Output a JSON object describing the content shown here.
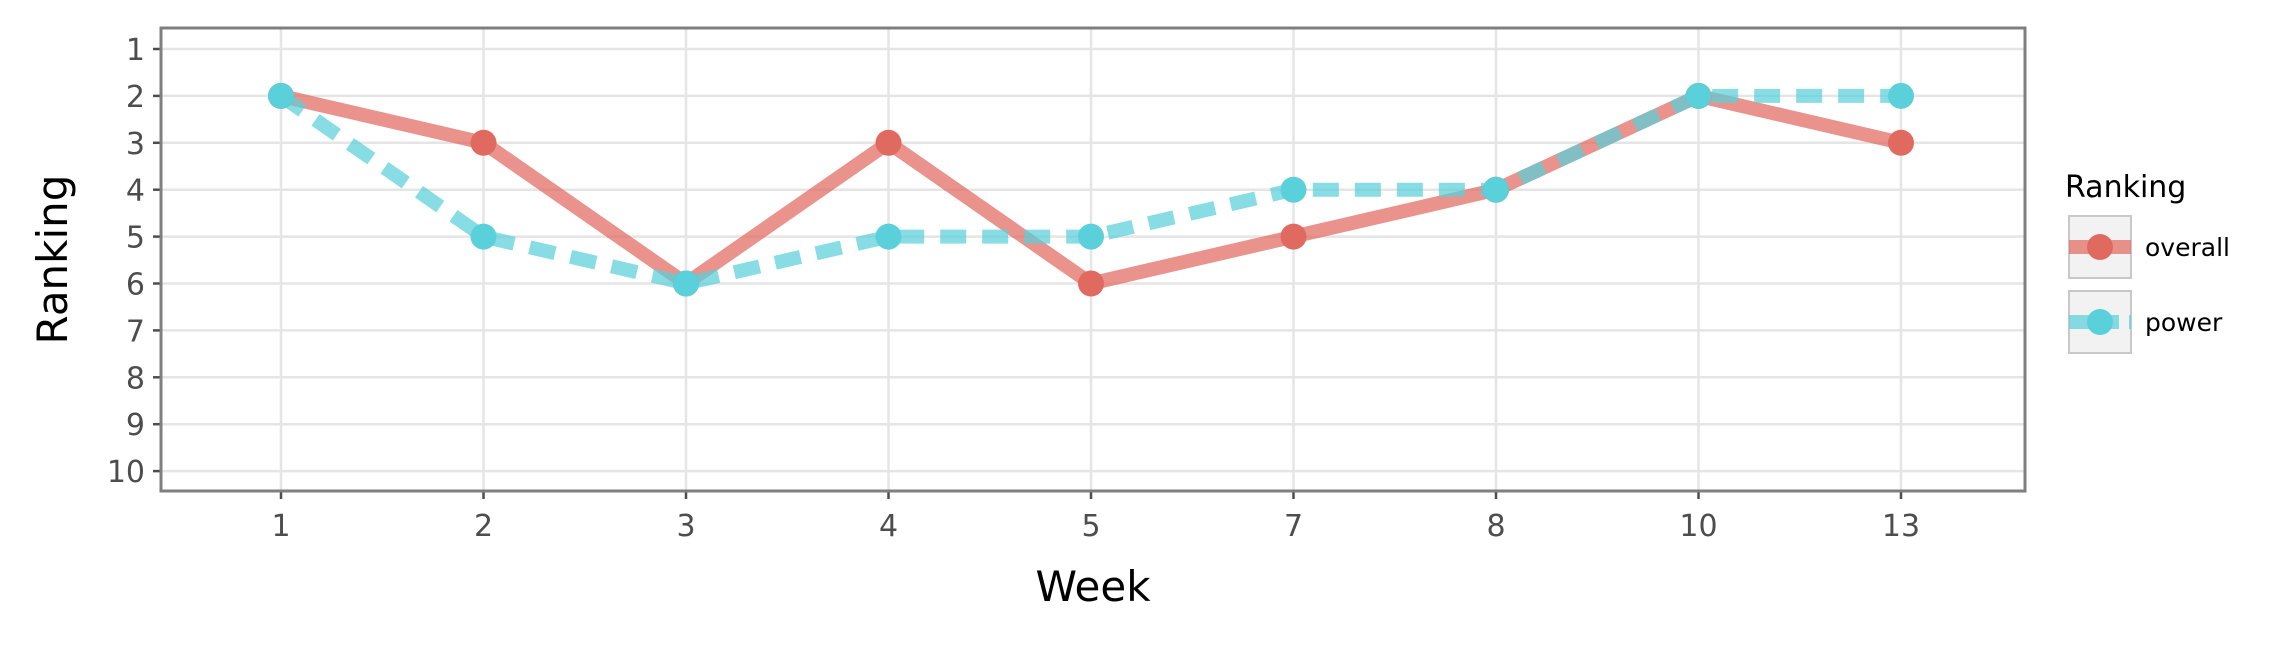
{
  "chart_data": {
    "type": "line",
    "xlabel": "Week",
    "ylabel": "Ranking",
    "x_categories": [
      "1",
      "2",
      "3",
      "4",
      "5",
      "7",
      "8",
      "10",
      "13"
    ],
    "y_ticks": [
      "1",
      "2",
      "3",
      "4",
      "5",
      "6",
      "7",
      "8",
      "9",
      "10"
    ],
    "ylim": [
      1,
      10
    ],
    "y_reversed": true,
    "grid": true,
    "legend": {
      "title": "Ranking",
      "placement": "right"
    },
    "series": [
      {
        "name": "overall",
        "color": "#e16a60",
        "linestyle": "solid",
        "values": [
          2,
          3,
          6,
          3,
          6,
          5,
          4,
          2,
          3
        ]
      },
      {
        "name": "power",
        "color": "#5ad0da",
        "linestyle": "dashed",
        "values": [
          2,
          5,
          6,
          5,
          5,
          4,
          4,
          2,
          2
        ]
      }
    ]
  }
}
